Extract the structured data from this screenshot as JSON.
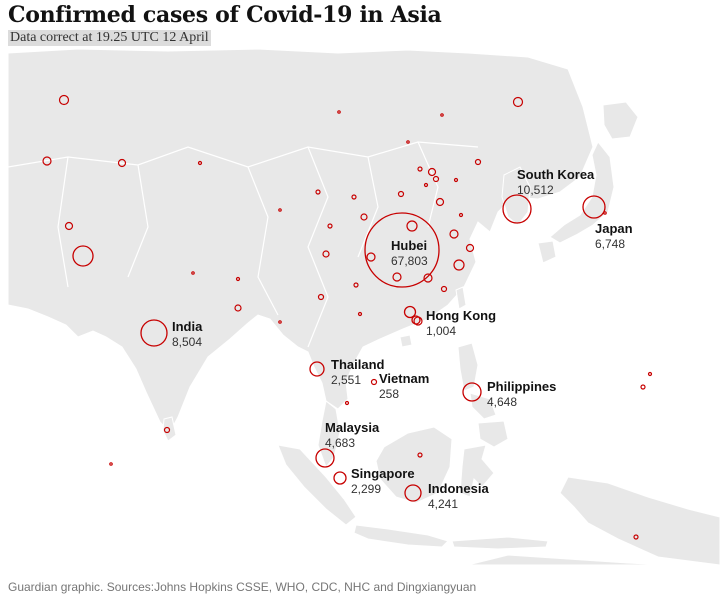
{
  "title": "Confirmed cases of Covid-19 in Asia",
  "subtitle": "Data correct at 19.25 UTC 12 April",
  "footer": "Guardian graphic. Sources:Johns Hopkins CSSE, WHO, CDC, NHC and Dingxiangyuan",
  "colors": {
    "land": "#e8e8e8",
    "border": "#ffffff",
    "marker": "#c70000"
  },
  "labeled_regions": [
    {
      "name": "Hubei",
      "value": "67,803"
    },
    {
      "name": "South Korea",
      "value": "10,512"
    },
    {
      "name": "Japan",
      "value": "6,748"
    },
    {
      "name": "India",
      "value": "8,504"
    },
    {
      "name": "Hong Kong",
      "value": "1,004"
    },
    {
      "name": "Thailand",
      "value": "2,551"
    },
    {
      "name": "Vietnam",
      "value": "258"
    },
    {
      "name": "Philippines",
      "value": "4,648"
    },
    {
      "name": "Malaysia",
      "value": "4,683"
    },
    {
      "name": "Singapore",
      "value": "2,299"
    },
    {
      "name": "Indonesia",
      "value": "4,241"
    }
  ]
}
